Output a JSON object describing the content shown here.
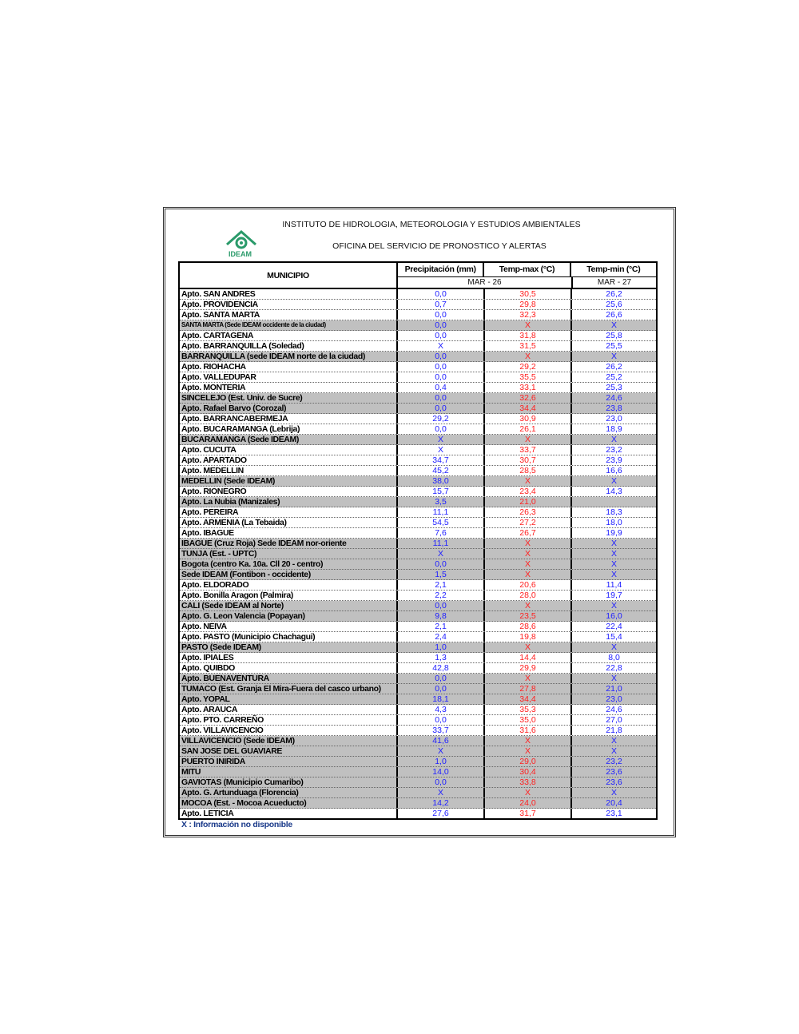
{
  "header": {
    "institute": "INSTITUTO DE HIDROLOGIA, METEOROLOGIA Y ESTUDIOS AMBIENTALES",
    "office": "OFICINA DEL SERVICIO DE PRONOSTICO Y ALERTAS",
    "logo_text": "IDEAM"
  },
  "table": {
    "col_municipio": "MUNICIPIO",
    "col_precip": "Precipitación (mm)",
    "col_tmax": "Temp-max (°C)",
    "col_tmin": "Temp-min (°C)",
    "date1": "MAR - 26",
    "date2": "MAR - 27",
    "rows": [
      {
        "m": "Apto. SAN ANDRES",
        "p": "0,0",
        "tx": "30,5",
        "tn": "26,2",
        "gray": false
      },
      {
        "m": "Apto. PROVIDENCIA",
        "p": "0,7",
        "tx": "29,8",
        "tn": "25,6",
        "gray": false
      },
      {
        "m": "Apto. SANTA MARTA",
        "p": "0,0",
        "tx": "32,3",
        "tn": "26,6",
        "gray": false
      },
      {
        "m": "SANTA MARTA (Sede IDEAM occidente de la ciudad)",
        "p": "0,0",
        "tx": "X",
        "tn": "X",
        "gray": true,
        "small": true
      },
      {
        "m": "Apto. CARTAGENA",
        "p": "0,0",
        "tx": "31,8",
        "tn": "25,8",
        "gray": false
      },
      {
        "m": "Apto. BARRANQUILLA (Soledad)",
        "p": "X",
        "tx": "31,5",
        "tn": "25,5",
        "gray": false
      },
      {
        "m": "BARRANQUILLA (sede IDEAM norte de la ciudad)",
        "p": "0,0",
        "tx": "X",
        "tn": "X",
        "gray": true
      },
      {
        "m": "Apto. RIOHACHA",
        "p": "0,0",
        "tx": "29,2",
        "tn": "26,2",
        "gray": false
      },
      {
        "m": "Apto. VALLEDUPAR",
        "p": "0,0",
        "tx": "35,5",
        "tn": "25,2",
        "gray": false
      },
      {
        "m": "Apto. MONTERIA",
        "p": "0,4",
        "tx": "33,1",
        "tn": "25,3",
        "gray": false
      },
      {
        "m": "SINCELEJO (Est. Univ. de Sucre)",
        "p": "0,0",
        "tx": "32,6",
        "tn": "24,6",
        "gray": true
      },
      {
        "m": "Apto. Rafael Barvo (Corozal)",
        "p": "0,0",
        "tx": "34,4",
        "tn": "23,8",
        "gray": true
      },
      {
        "m": "Apto. BARRANCABERMEJA",
        "p": "29,2",
        "tx": "30,9",
        "tn": "23,0",
        "gray": false
      },
      {
        "m": "Apto. BUCARAMANGA (Lebrija)",
        "p": "0,0",
        "tx": "26,1",
        "tn": "18,9",
        "gray": false
      },
      {
        "m": "BUCARAMANGA (Sede IDEAM)",
        "p": "X",
        "tx": "X",
        "tn": "X",
        "gray": true
      },
      {
        "m": "Apto. CUCUTA",
        "p": "X",
        "tx": "33,7",
        "tn": "23,2",
        "gray": false
      },
      {
        "m": "Apto. APARTADO",
        "p": "34,7",
        "tx": "30,7",
        "tn": "23,9",
        "gray": false
      },
      {
        "m": "Apto. MEDELLIN",
        "p": "45,2",
        "tx": "28,5",
        "tn": "16,6",
        "gray": false
      },
      {
        "m": "MEDELLIN (Sede IDEAM)",
        "p": "38,0",
        "tx": "X",
        "tn": "X",
        "gray": true
      },
      {
        "m": "Apto. RIONEGRO",
        "p": "15,7",
        "tx": "23,4",
        "tn": "14,3",
        "gray": false
      },
      {
        "m": "Apto. La Nubia (Manizales)",
        "p": "3,5",
        "tx": "21,0",
        "tn": "",
        "gray": true
      },
      {
        "m": "Apto. PEREIRA",
        "p": "11,1",
        "tx": "26,3",
        "tn": "18,3",
        "gray": false
      },
      {
        "m": "Apto. ARMENIA (La Tebaida)",
        "p": "54,5",
        "tx": "27,2",
        "tn": "18,0",
        "gray": false
      },
      {
        "m": "Apto. IBAGUE",
        "p": "7,6",
        "tx": "26,7",
        "tn": "19,9",
        "gray": false
      },
      {
        "m": "IBAGUE (Cruz Roja) Sede IDEAM  nor-oriente",
        "p": "11,1",
        "tx": "X",
        "tn": "X",
        "gray": true
      },
      {
        "m": "TUNJA (Est. - UPTC)",
        "p": "X",
        "tx": "X",
        "tn": "X",
        "gray": true
      },
      {
        "m": "Bogota (centro Ka. 10a. Cll 20 - centro)",
        "p": "0,0",
        "tx": "X",
        "tn": "X",
        "gray": true
      },
      {
        "m": "Sede IDEAM (Fontibon - occidente)",
        "p": "1,5",
        "tx": "X",
        "tn": "X",
        "gray": true
      },
      {
        "m": "Apto. ELDORADO",
        "p": "2,1",
        "tx": "20,6",
        "tn": "11,4",
        "gray": false
      },
      {
        "m": "Apto. Bonilla Aragon (Palmira)",
        "p": "2,2",
        "tx": "28,0",
        "tn": "19,7",
        "gray": false
      },
      {
        "m": "CALI (Sede IDEAM al Norte)",
        "p": "0,0",
        "tx": "X",
        "tn": "X",
        "gray": true
      },
      {
        "m": "Apto. G. Leon Valencia (Popayan)",
        "p": "9,8",
        "tx": "23,5",
        "tn": "16,0",
        "gray": true
      },
      {
        "m": "Apto. NEIVA",
        "p": "2,1",
        "tx": "28,6",
        "tn": "22,4",
        "gray": false
      },
      {
        "m": "Apto. PASTO (Municipio Chachagui)",
        "p": "2,4",
        "tx": "19,8",
        "tn": "15,4",
        "gray": false
      },
      {
        "m": "PASTO (Sede IDEAM)",
        "p": "1,0",
        "tx": "X",
        "tn": "X",
        "gray": true
      },
      {
        "m": "Apto. IPIALES",
        "p": "1,3",
        "tx": "14,4",
        "tn": "8,0",
        "gray": false
      },
      {
        "m": "Apto. QUIBDO",
        "p": "42,8",
        "tx": "29,9",
        "tn": "22,8",
        "gray": false
      },
      {
        "m": "Apto. BUENAVENTURA",
        "p": "0,0",
        "tx": "X",
        "tn": "X",
        "gray": true
      },
      {
        "m": "TUMACO (Est. Granja El Mira-Fuera del casco urbano)",
        "p": "0,0",
        "tx": "27,8",
        "tn": "21,0",
        "gray": true
      },
      {
        "m": "Apto. YOPAL",
        "p": "18,1",
        "tx": "34,4",
        "tn": "23,0",
        "gray": true
      },
      {
        "m": "Apto. ARAUCA",
        "p": "4,3",
        "tx": "35,3",
        "tn": "24,6",
        "gray": false
      },
      {
        "m": "Apto. PTO.  CARREÑO",
        "p": "0,0",
        "tx": "35,0",
        "tn": "27,0",
        "gray": false
      },
      {
        "m": "Apto. VILLAVICENCIO",
        "p": "33,7",
        "tx": "31,6",
        "tn": "21,8",
        "gray": false
      },
      {
        "m": "VILLAVICENCIO (Sede IDEAM)",
        "p": "41,6",
        "tx": "X",
        "tn": "X",
        "gray": true
      },
      {
        "m": "SAN JOSE DEL GUAVIARE",
        "p": "X",
        "tx": "X",
        "tn": "X",
        "gray": true
      },
      {
        "m": "PUERTO INIRIDA",
        "p": "1,0",
        "tx": "29,0",
        "tn": "23,2",
        "gray": true
      },
      {
        "m": "MITU",
        "p": "14,0",
        "tx": "30,4",
        "tn": "23,6",
        "gray": true
      },
      {
        "m": "GAVIOTAS (Municipio Cumaribo)",
        "p": "0,0",
        "tx": "33,8",
        "tn": "23,6",
        "gray": true
      },
      {
        "m": "Apto. G. Artunduaga (Florencia)",
        "p": "X",
        "tx": "X",
        "tn": "X",
        "gray": true
      },
      {
        "m": "MOCOA (Est. - Mocoa Acueducto)",
        "p": "14,2",
        "tx": "24,0",
        "tn": "20,4",
        "gray": true
      },
      {
        "m": "Apto. LETICIA",
        "p": "27,6",
        "tx": "31,7",
        "tn": "23,1",
        "gray": false
      }
    ]
  },
  "footnote": "X : Información no disponible",
  "colors": {
    "precip": "#2020ff",
    "tmax": "#ff2020",
    "tmin": "#2020ff",
    "gray_row": "#c0c0c0",
    "logo": "#2a9a6a"
  }
}
